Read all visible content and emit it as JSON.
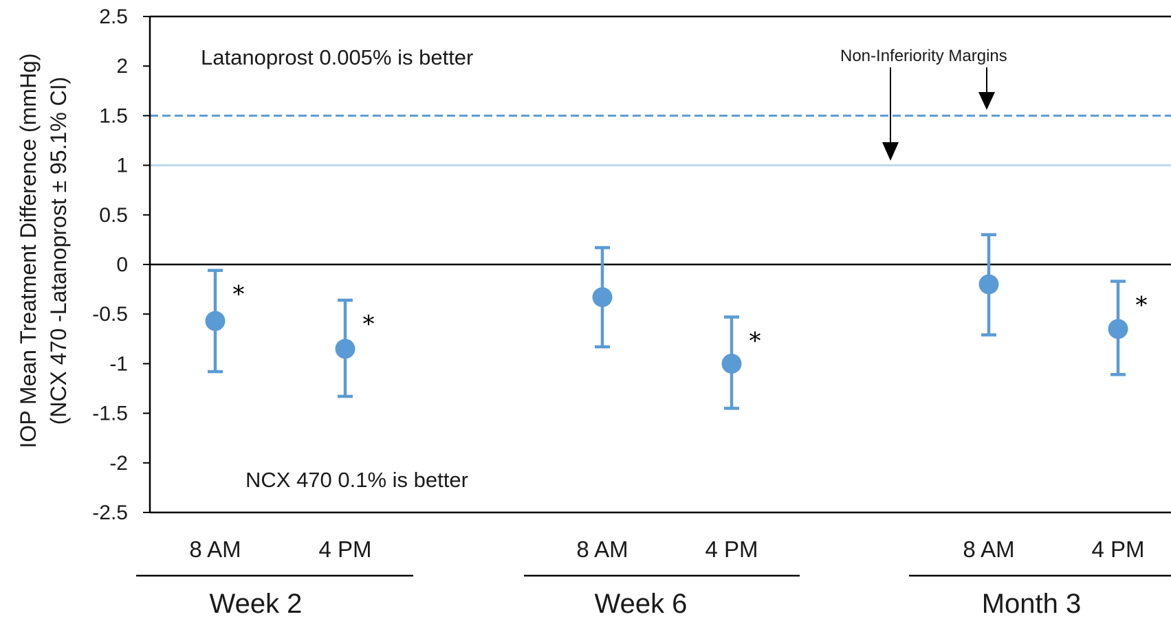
{
  "chart_data": {
    "type": "scatter",
    "ylabel_line1": "IOP Mean Treatment Difference (mmHg)",
    "ylabel_line2": "(NCX 470 -Latanoprost ± 95.1% CI)",
    "ylim": [
      -2.5,
      2.5
    ],
    "yticks": [
      "2.5",
      "2",
      "1.5",
      "1",
      "0.5",
      "0",
      "-0.5",
      "-1",
      "-1.5",
      "-2",
      "-2.5"
    ],
    "ytick_values": [
      2.5,
      2,
      1.5,
      1,
      0.5,
      0,
      -0.5,
      -1,
      -1.5,
      -2,
      -2.5
    ],
    "groups": [
      "Week 2",
      "Week 6",
      "Month 3"
    ],
    "points": [
      {
        "group": "Week 2",
        "time": "8 AM",
        "mean": -0.57,
        "lower": -1.08,
        "upper": -0.06,
        "significant": true
      },
      {
        "group": "Week 2",
        "time": "4 PM",
        "mean": -0.85,
        "lower": -1.33,
        "upper": -0.36,
        "significant": true
      },
      {
        "group": "Week 6",
        "time": "8 AM",
        "mean": -0.33,
        "lower": -0.83,
        "upper": 0.17,
        "significant": false
      },
      {
        "group": "Week 6",
        "time": "4 PM",
        "mean": -1.0,
        "lower": -1.45,
        "upper": -0.53,
        "significant": true
      },
      {
        "group": "Month 3",
        "time": "8 AM",
        "mean": -0.2,
        "lower": -0.71,
        "upper": 0.3,
        "significant": false
      },
      {
        "group": "Month 3",
        "time": "4 PM",
        "mean": -0.65,
        "lower": -1.11,
        "upper": -0.17,
        "significant": true
      }
    ],
    "reference_lines": [
      {
        "value": 1.5,
        "style": "dashed",
        "color": "#5b9bd5"
      },
      {
        "value": 1.0,
        "style": "solid",
        "color": "#bdd7ee"
      },
      {
        "value": 0,
        "style": "solid",
        "color": "#000000"
      }
    ],
    "annotations": {
      "upper_region": "Latanoprost 0.005% is better",
      "lower_region": "NCX 470 0.1% is better",
      "margins": "Non-Inferiority Margins",
      "significance_marker": "*"
    },
    "colors": {
      "point": "#5b9bd5",
      "axis": "#000000"
    }
  }
}
